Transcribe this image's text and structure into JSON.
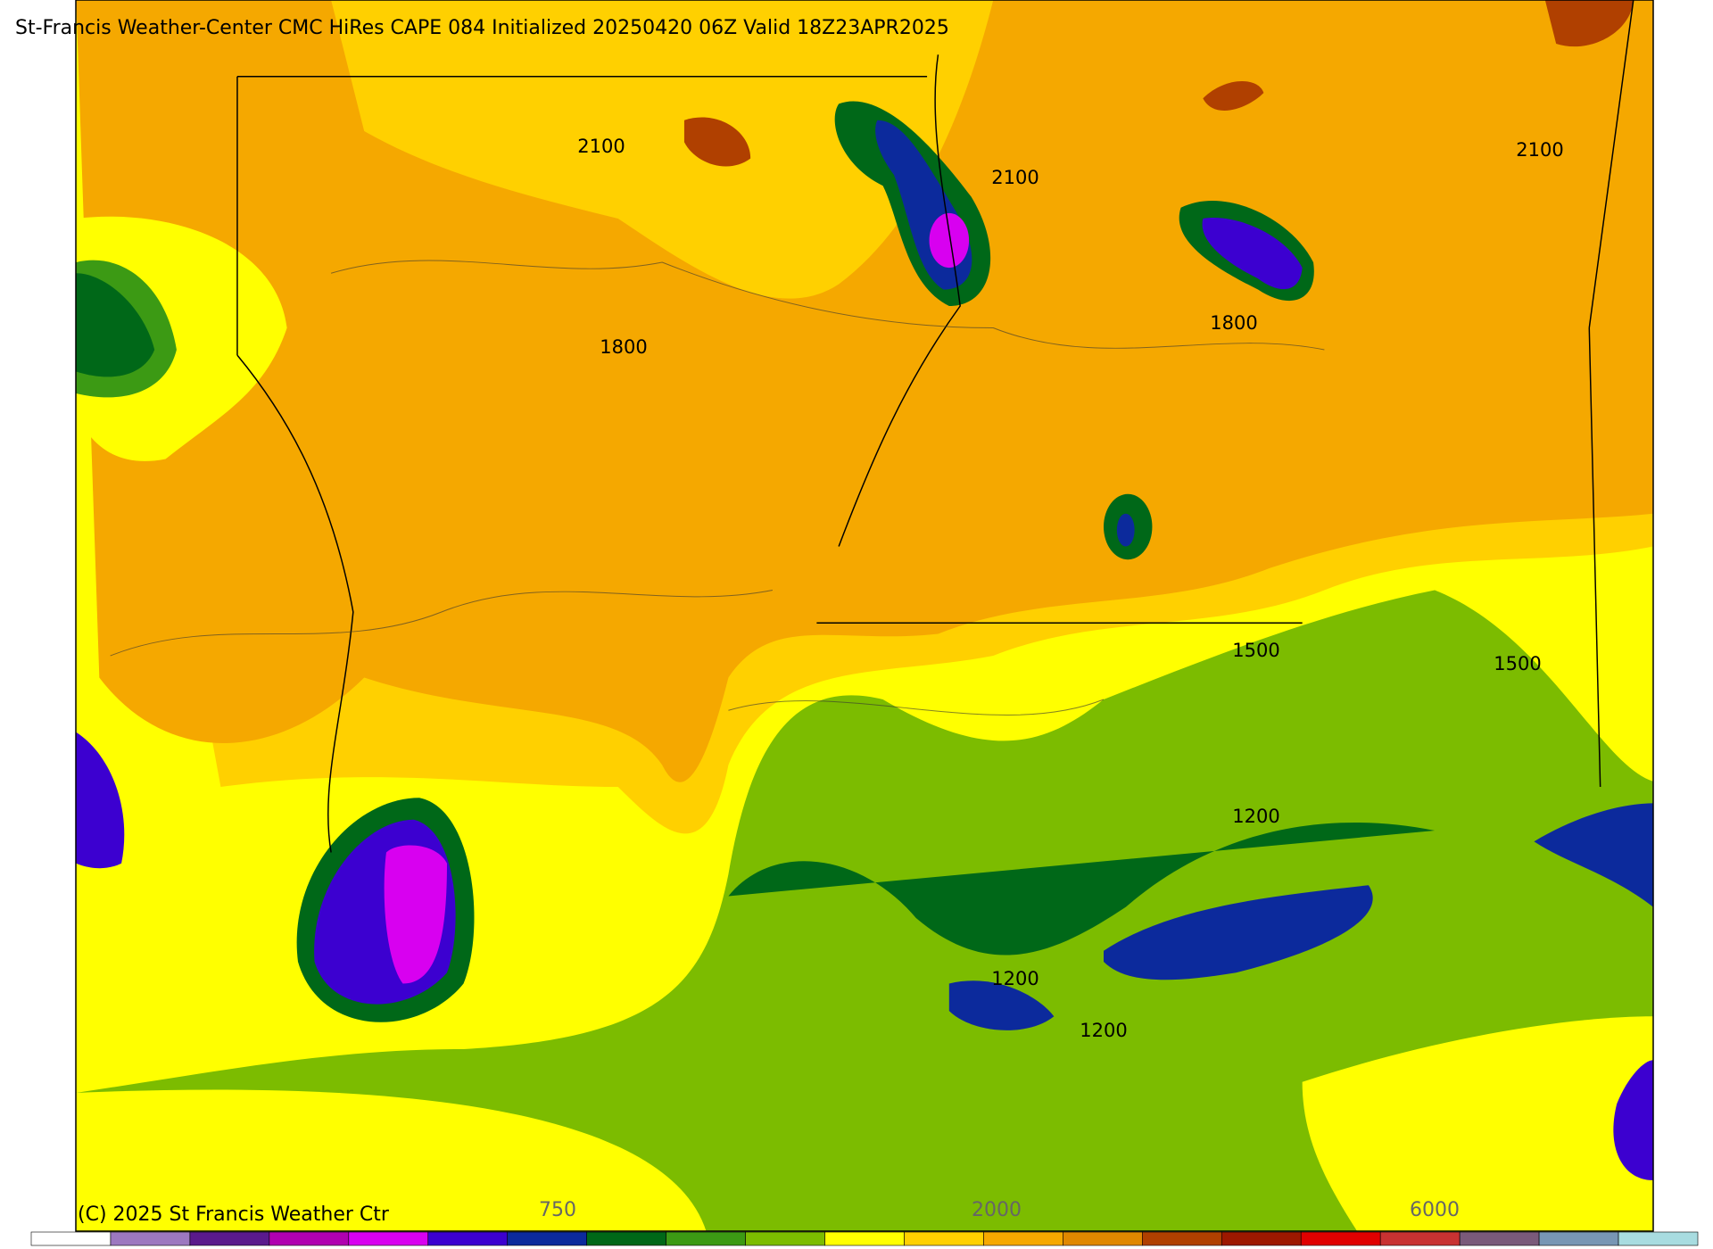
{
  "header": {
    "title": "St-Francis Weather-Center CMC HiRes CAPE  084 Initialized 20250420 06Z Valid 18Z23APR2025"
  },
  "contour_labels": [
    "2100",
    "2100",
    "2100",
    "1800",
    "1800",
    "1500",
    "1500",
    "1200",
    "1200",
    "1200"
  ],
  "colorbar": {
    "colors": [
      "#ffffff",
      "#9c78c0",
      "#5a1a8c",
      "#b000b0",
      "#d800f0",
      "#3c00d0",
      "#0c2a9c",
      "#006818",
      "#3c9a14",
      "#7cbc00",
      "#ffff00",
      "#ffd000",
      "#f5a800",
      "#e08800",
      "#b04000",
      "#9c1800",
      "#e00000",
      "#c83232",
      "#7a5a7a",
      "#7896b4",
      "#a8dce0"
    ],
    "labels": [
      "750",
      "2000",
      "6000"
    ]
  },
  "footer": {
    "copyright": "(C) 2025 St Francis Weather Ctr"
  }
}
